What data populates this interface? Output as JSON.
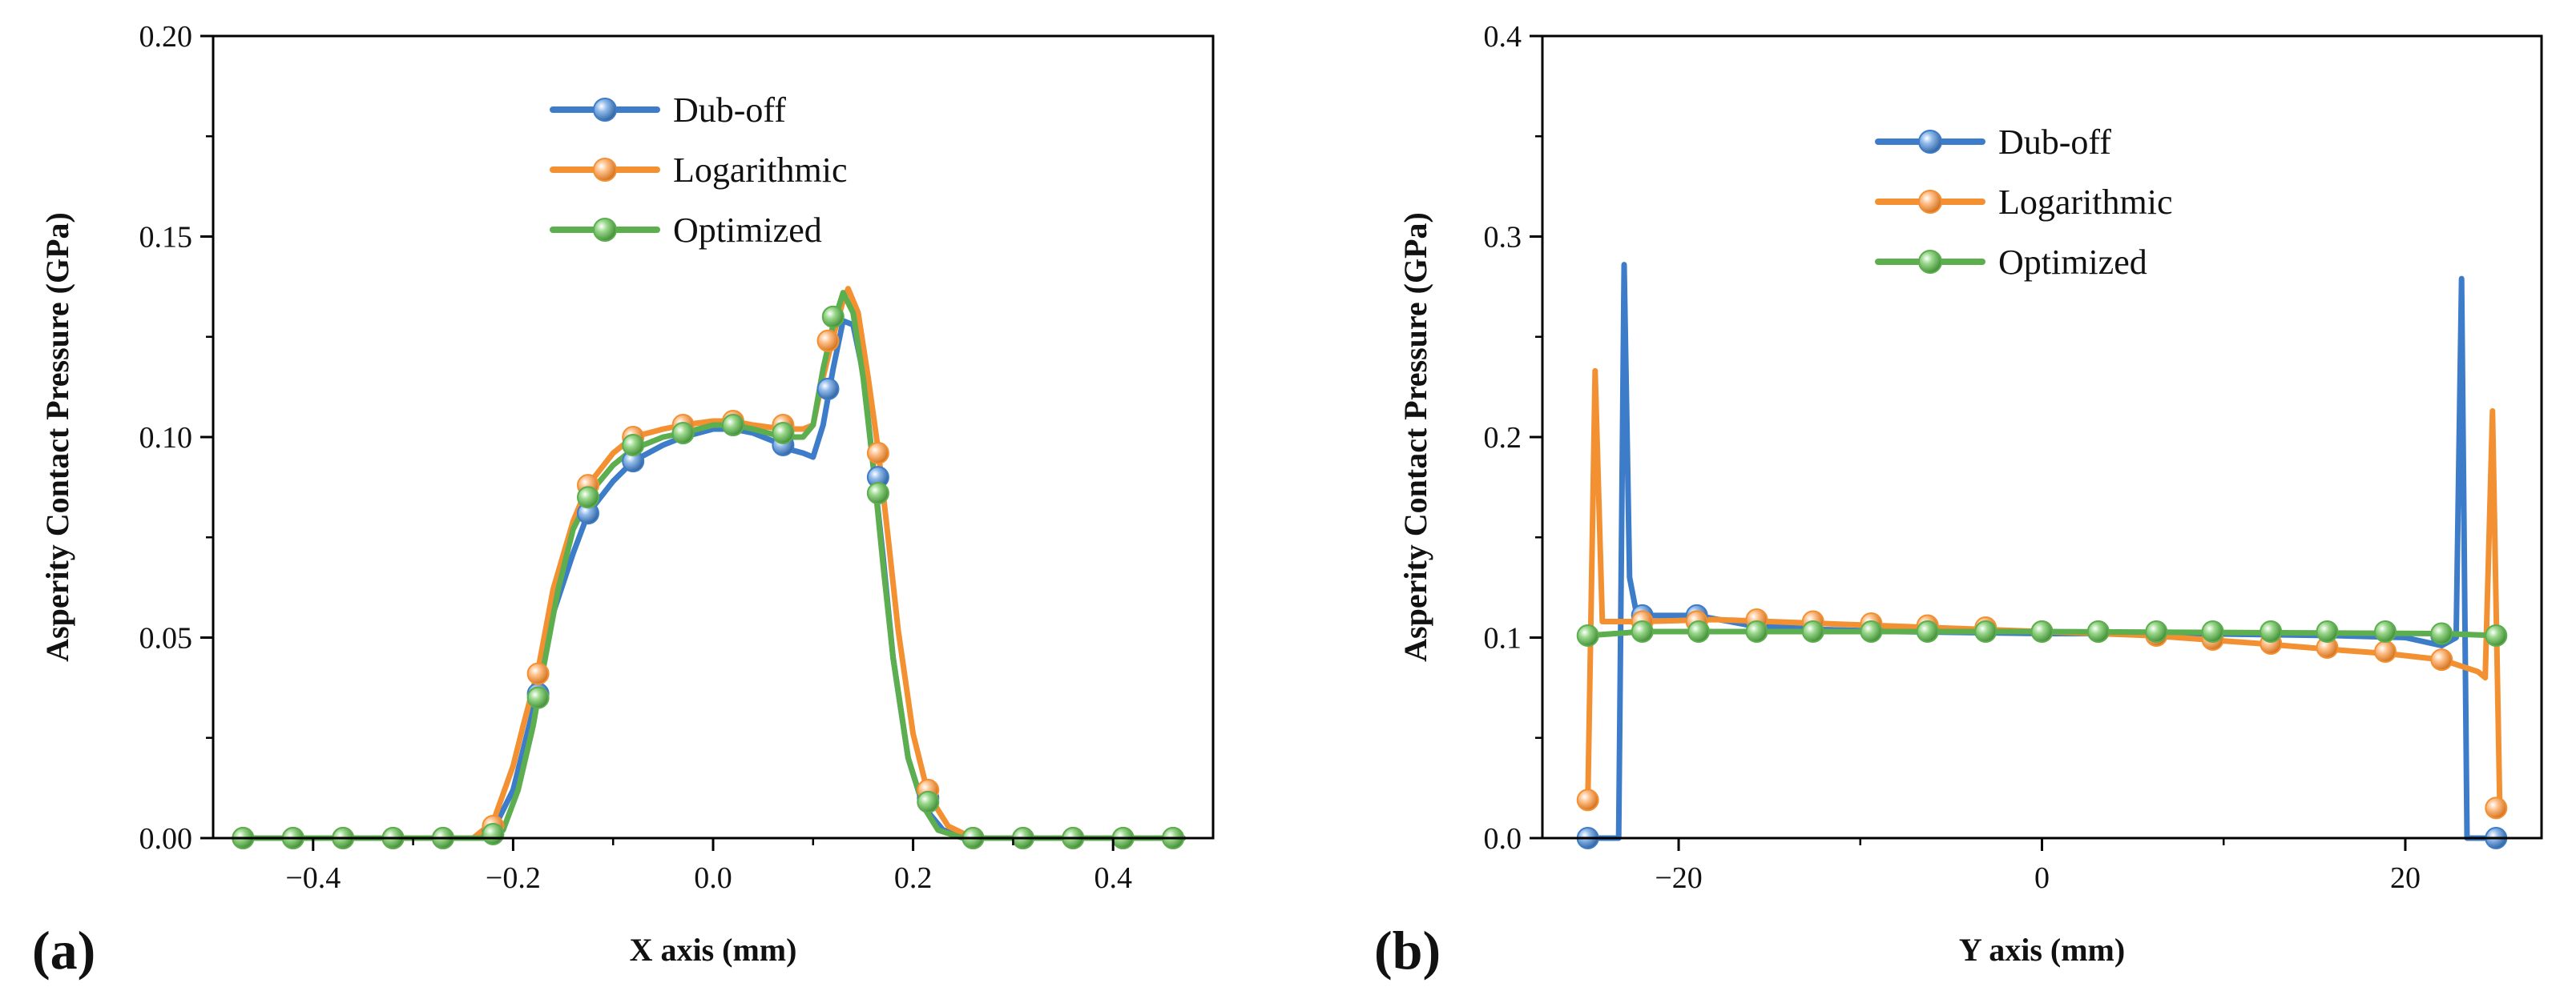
{
  "chart_data": [
    {
      "type": "line",
      "panel_label": "(a)",
      "title": "",
      "xlabel": "X axis (mm)",
      "ylabel": "Asperity Contact Pressure (GPa)",
      "xlim": [
        -0.5,
        0.5
      ],
      "ylim": [
        0.0,
        0.2
      ],
      "xticks": [
        -0.4,
        -0.2,
        0.0,
        0.2,
        0.4
      ],
      "xtick_labels": [
        "−0.4",
        "−0.2",
        "0.0",
        "0.2",
        "0.4"
      ],
      "yticks": [
        0.0,
        0.05,
        0.1,
        0.15,
        0.2
      ],
      "ytick_labels": [
        "0.00",
        "0.05",
        "0.10",
        "0.15",
        "0.20"
      ],
      "legend_position": "top-center",
      "series": [
        {
          "name": "Dub-off",
          "color": "#3d7cc9",
          "line": [
            [
              -0.47,
              0
            ],
            [
              -0.24,
              0
            ],
            [
              -0.22,
              0.002
            ],
            [
              -0.2,
              0.012
            ],
            [
              -0.19,
              0.022
            ],
            [
              -0.175,
              0.037
            ],
            [
              -0.16,
              0.056
            ],
            [
              -0.14,
              0.071
            ],
            [
              -0.125,
              0.081
            ],
            [
              -0.1,
              0.089
            ],
            [
              -0.08,
              0.094
            ],
            [
              -0.05,
              0.098
            ],
            [
              -0.03,
              0.1
            ],
            [
              0.0,
              0.102
            ],
            [
              0.02,
              0.102
            ],
            [
              0.04,
              0.101
            ],
            [
              0.06,
              0.099
            ],
            [
              0.075,
              0.097
            ],
            [
              0.09,
              0.096
            ],
            [
              0.1,
              0.095
            ],
            [
              0.11,
              0.103
            ],
            [
              0.12,
              0.117
            ],
            [
              0.13,
              0.129
            ],
            [
              0.14,
              0.128
            ],
            [
              0.15,
              0.116
            ],
            [
              0.16,
              0.093
            ],
            [
              0.17,
              0.07
            ],
            [
              0.18,
              0.045
            ],
            [
              0.195,
              0.02
            ],
            [
              0.21,
              0.008
            ],
            [
              0.23,
              0.002
            ],
            [
              0.26,
              0
            ],
            [
              0.47,
              0
            ]
          ],
          "markers": [
            [
              -0.47,
              0
            ],
            [
              -0.42,
              0
            ],
            [
              -0.37,
              0
            ],
            [
              -0.32,
              0
            ],
            [
              -0.27,
              0
            ],
            [
              -0.22,
              0.002
            ],
            [
              -0.175,
              0.036
            ],
            [
              -0.125,
              0.081
            ],
            [
              -0.08,
              0.094
            ],
            [
              -0.03,
              0.101
            ],
            [
              0.02,
              0.103
            ],
            [
              0.07,
              0.098
            ],
            [
              0.115,
              0.112
            ],
            [
              0.165,
              0.09
            ],
            [
              0.215,
              0.01
            ],
            [
              0.26,
              0
            ],
            [
              0.31,
              0
            ],
            [
              0.36,
              0
            ],
            [
              0.41,
              0
            ],
            [
              0.46,
              0
            ]
          ]
        },
        {
          "name": "Logarithmic",
          "color": "#f39132",
          "line": [
            [
              -0.47,
              0
            ],
            [
              -0.24,
              0
            ],
            [
              -0.22,
              0.004
            ],
            [
              -0.2,
              0.018
            ],
            [
              -0.19,
              0.028
            ],
            [
              -0.175,
              0.042
            ],
            [
              -0.16,
              0.062
            ],
            [
              -0.14,
              0.079
            ],
            [
              -0.125,
              0.088
            ],
            [
              -0.1,
              0.096
            ],
            [
              -0.08,
              0.1
            ],
            [
              -0.05,
              0.102
            ],
            [
              -0.03,
              0.103
            ],
            [
              0.0,
              0.104
            ],
            [
              0.02,
              0.104
            ],
            [
              0.04,
              0.103
            ],
            [
              0.07,
              0.102
            ],
            [
              0.09,
              0.102
            ],
            [
              0.1,
              0.103
            ],
            [
              0.11,
              0.115
            ],
            [
              0.12,
              0.125
            ],
            [
              0.13,
              0.134
            ],
            [
              0.135,
              0.137
            ],
            [
              0.145,
              0.131
            ],
            [
              0.155,
              0.115
            ],
            [
              0.165,
              0.097
            ],
            [
              0.175,
              0.075
            ],
            [
              0.185,
              0.052
            ],
            [
              0.2,
              0.026
            ],
            [
              0.215,
              0.011
            ],
            [
              0.235,
              0.003
            ],
            [
              0.26,
              0
            ],
            [
              0.47,
              0
            ]
          ],
          "markers": [
            [
              -0.47,
              0
            ],
            [
              -0.42,
              0
            ],
            [
              -0.37,
              0
            ],
            [
              -0.32,
              0
            ],
            [
              -0.27,
              0
            ],
            [
              -0.22,
              0.003
            ],
            [
              -0.175,
              0.041
            ],
            [
              -0.125,
              0.088
            ],
            [
              -0.08,
              0.1
            ],
            [
              -0.03,
              0.103
            ],
            [
              0.02,
              0.104
            ],
            [
              0.07,
              0.103
            ],
            [
              0.115,
              0.124
            ],
            [
              0.165,
              0.096
            ],
            [
              0.215,
              0.012
            ],
            [
              0.26,
              0
            ],
            [
              0.31,
              0
            ],
            [
              0.36,
              0
            ],
            [
              0.41,
              0
            ],
            [
              0.46,
              0
            ]
          ]
        },
        {
          "name": "Optimized",
          "color": "#5cae4f",
          "line": [
            [
              -0.47,
              0
            ],
            [
              -0.23,
              0
            ],
            [
              -0.21,
              0.002
            ],
            [
              -0.195,
              0.012
            ],
            [
              -0.18,
              0.028
            ],
            [
              -0.17,
              0.042
            ],
            [
              -0.155,
              0.062
            ],
            [
              -0.14,
              0.077
            ],
            [
              -0.12,
              0.087
            ],
            [
              -0.1,
              0.093
            ],
            [
              -0.08,
              0.097
            ],
            [
              -0.05,
              0.1
            ],
            [
              -0.03,
              0.101
            ],
            [
              0.0,
              0.103
            ],
            [
              0.02,
              0.103
            ],
            [
              0.04,
              0.102
            ],
            [
              0.07,
              0.1
            ],
            [
              0.09,
              0.1
            ],
            [
              0.1,
              0.103
            ],
            [
              0.11,
              0.117
            ],
            [
              0.12,
              0.128
            ],
            [
              0.13,
              0.136
            ],
            [
              0.14,
              0.131
            ],
            [
              0.15,
              0.115
            ],
            [
              0.16,
              0.093
            ],
            [
              0.17,
              0.068
            ],
            [
              0.18,
              0.045
            ],
            [
              0.195,
              0.02
            ],
            [
              0.21,
              0.008
            ],
            [
              0.225,
              0.002
            ],
            [
              0.25,
              0
            ],
            [
              0.47,
              0
            ]
          ],
          "markers": [
            [
              -0.47,
              0
            ],
            [
              -0.42,
              0
            ],
            [
              -0.37,
              0
            ],
            [
              -0.32,
              0
            ],
            [
              -0.27,
              0
            ],
            [
              -0.22,
              0.001
            ],
            [
              -0.175,
              0.035
            ],
            [
              -0.125,
              0.085
            ],
            [
              -0.08,
              0.098
            ],
            [
              -0.03,
              0.101
            ],
            [
              0.02,
              0.103
            ],
            [
              0.07,
              0.101
            ],
            [
              0.12,
              0.13
            ],
            [
              0.165,
              0.086
            ],
            [
              0.215,
              0.009
            ],
            [
              0.26,
              0
            ],
            [
              0.31,
              0
            ],
            [
              0.36,
              0
            ],
            [
              0.41,
              0
            ],
            [
              0.46,
              0
            ]
          ]
        }
      ]
    },
    {
      "type": "line",
      "panel_label": "(b)",
      "title": "",
      "xlabel": "Y axis (mm)",
      "ylabel": "Asperity Contact Pressure (GPa)",
      "xlim": [
        -27.5,
        27.5
      ],
      "ylim": [
        0.0,
        0.4
      ],
      "xticks": [
        -20,
        0,
        20
      ],
      "xtick_labels": [
        "−20",
        "0",
        "20"
      ],
      "yticks": [
        0.0,
        0.1,
        0.2,
        0.3,
        0.4
      ],
      "ytick_labels": [
        "0.0",
        "0.1",
        "0.2",
        "0.3",
        "0.4"
      ],
      "legend_position": "top-center",
      "series": [
        {
          "name": "Dub-off",
          "color": "#3d7cc9",
          "line": [
            [
              -25,
              0
            ],
            [
              -23.3,
              0
            ],
            [
              -23,
              0.286
            ],
            [
              -22.7,
              0.13
            ],
            [
              -22.3,
              0.111
            ],
            [
              -19,
              0.111
            ],
            [
              -16,
              0.106
            ],
            [
              -12,
              0.104
            ],
            [
              -8,
              0.103
            ],
            [
              0,
              0.102
            ],
            [
              8,
              0.102
            ],
            [
              16,
              0.101
            ],
            [
              20,
              0.1
            ],
            [
              22,
              0.096
            ],
            [
              22.8,
              0.1
            ],
            [
              23.1,
              0.279
            ],
            [
              23.4,
              0
            ],
            [
              25,
              0
            ]
          ],
          "markers": [
            [
              -25,
              0
            ],
            [
              -22,
              0.111
            ],
            [
              -19,
              0.111
            ],
            [
              22,
              0.101
            ],
            [
              25,
              0
            ]
          ]
        },
        {
          "name": "Logarithmic",
          "color": "#f39132",
          "line": [
            [
              -25,
              0.018
            ],
            [
              -24.6,
              0.233
            ],
            [
              -24.2,
              0.108
            ],
            [
              -22,
              0.108
            ],
            [
              -18,
              0.109
            ],
            [
              -12,
              0.107
            ],
            [
              -6,
              0.105
            ],
            [
              0,
              0.103
            ],
            [
              6,
              0.101
            ],
            [
              12,
              0.097
            ],
            [
              16,
              0.094
            ],
            [
              19,
              0.092
            ],
            [
              22,
              0.089
            ],
            [
              24,
              0.083
            ],
            [
              24.4,
              0.08
            ],
            [
              24.8,
              0.213
            ],
            [
              25.2,
              0.015
            ]
          ],
          "markers": [
            [
              -25,
              0.019
            ],
            [
              -22,
              0.108
            ],
            [
              -19,
              0.108
            ],
            [
              -15.7,
              0.109
            ],
            [
              -12.6,
              0.108
            ],
            [
              -9.4,
              0.107
            ],
            [
              -6.3,
              0.106
            ],
            [
              -3.1,
              0.105
            ],
            [
              0,
              0.103
            ],
            [
              3.1,
              0.103
            ],
            [
              6.3,
              0.101
            ],
            [
              9.4,
              0.099
            ],
            [
              12.6,
              0.097
            ],
            [
              15.7,
              0.095
            ],
            [
              18.9,
              0.093
            ],
            [
              22,
              0.089
            ],
            [
              25,
              0.015
            ]
          ]
        },
        {
          "name": "Optimized",
          "color": "#5cae4f",
          "line": [
            [
              -25,
              0.101
            ],
            [
              -23.5,
              0.102
            ],
            [
              -22,
              0.103
            ],
            [
              0,
              0.103
            ],
            [
              22,
              0.102
            ],
            [
              25,
              0.101
            ]
          ],
          "markers": [
            [
              -25,
              0.101
            ],
            [
              -22,
              0.103
            ],
            [
              -18.9,
              0.103
            ],
            [
              -15.7,
              0.103
            ],
            [
              -12.6,
              0.103
            ],
            [
              -9.4,
              0.103
            ],
            [
              -6.3,
              0.103
            ],
            [
              -3.1,
              0.103
            ],
            [
              0,
              0.103
            ],
            [
              3.1,
              0.103
            ],
            [
              6.3,
              0.103
            ],
            [
              9.4,
              0.103
            ],
            [
              12.6,
              0.103
            ],
            [
              15.7,
              0.103
            ],
            [
              18.9,
              0.103
            ],
            [
              22,
              0.102
            ],
            [
              25,
              0.101
            ]
          ]
        }
      ]
    }
  ]
}
